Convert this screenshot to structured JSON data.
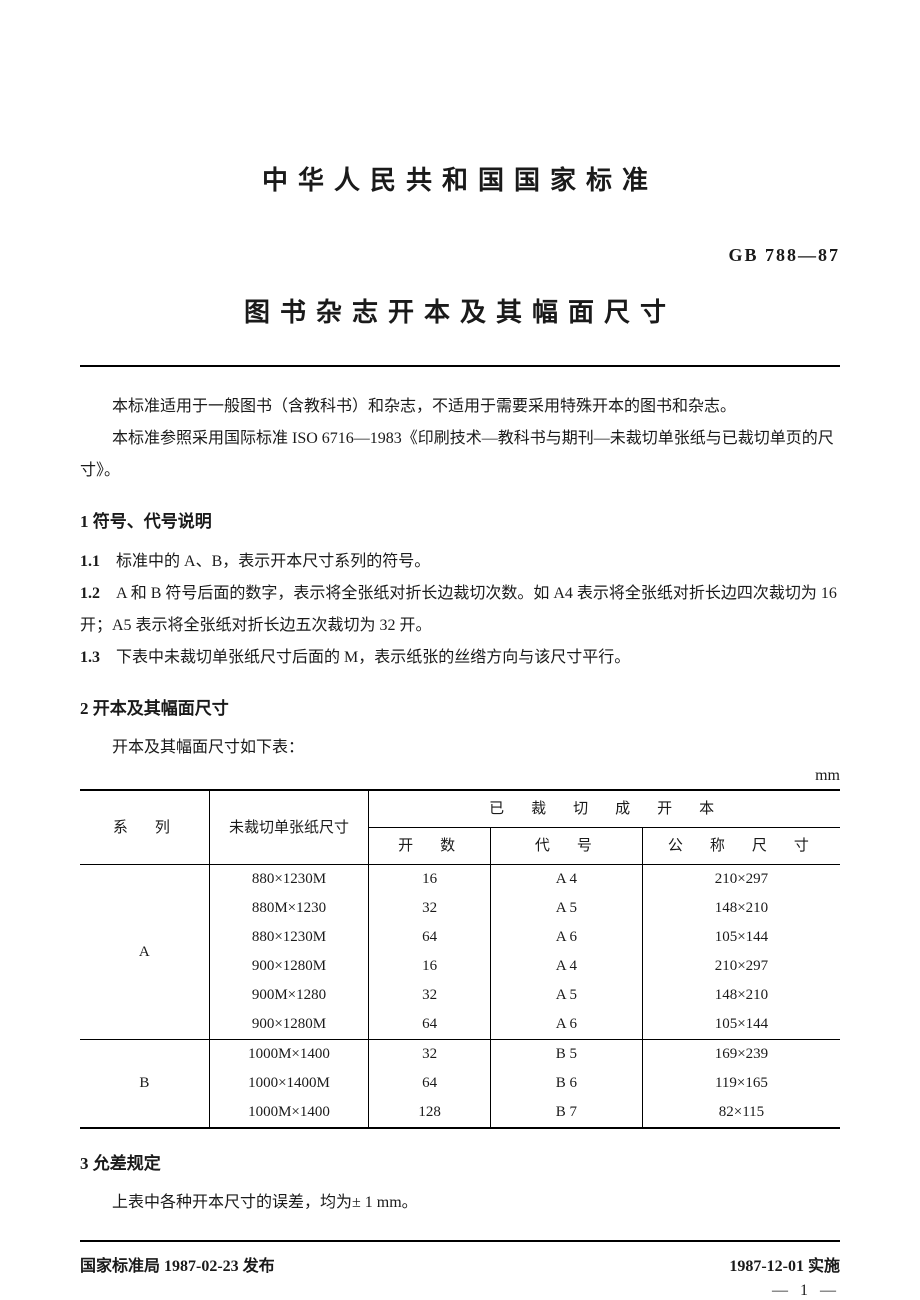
{
  "header": {
    "main_title": "中华人民共和国国家标准",
    "doc_code": "GB  788—87",
    "sub_title": "图书杂志开本及其幅面尺寸"
  },
  "intro": {
    "p1": "本标准适用于一般图书（含教科书）和杂志，不适用于需要采用特殊开本的图书和杂志。",
    "p2": "本标准参照采用国际标准 ISO  6716—1983《印刷技术—教科书与期刊—未裁切单张纸与已裁切单页的尺寸》。"
  },
  "sections": {
    "s1_heading": "1  符号、代号说明",
    "c11_num": "1.1",
    "c11_text": "标准中的 A、B，表示开本尺寸系列的符号。",
    "c12_num": "1.2",
    "c12_text": "A 和 B 符号后面的数字，表示将全张纸对折长边裁切次数。如 A4 表示将全张纸对折长边四次裁切为 16 开；A5 表示将全张纸对折长边五次裁切为 32 开。",
    "c13_num": "1.3",
    "c13_text": "下表中未裁切单张纸尺寸后面的 M，表示纸张的丝绺方向与该尺寸平行。",
    "s2_heading": "2  开本及其幅面尺寸",
    "table_intro": "开本及其幅面尺寸如下表：",
    "unit": "mm",
    "s3_heading": "3  允差规定",
    "s3_text": "上表中各种开本尺寸的误差，均为± 1 mm。"
  },
  "table": {
    "headers": {
      "series": "系　列",
      "uncut": "未裁切单张纸尺寸",
      "group": "已　裁　切　成　开　本",
      "kaishu": "开　数",
      "daihao": "代　号",
      "nominal": "公　称　尺　寸"
    },
    "body": {
      "a_label": "A",
      "b_label": "B",
      "a": [
        {
          "uncut": "880×1230M",
          "kai": "16",
          "code": "A  4",
          "size": "210×297"
        },
        {
          "uncut": "880M×1230",
          "kai": "32",
          "code": "A  5",
          "size": "148×210"
        },
        {
          "uncut": "880×1230M",
          "kai": "64",
          "code": "A  6",
          "size": "105×144"
        },
        {
          "uncut": "900×1280M",
          "kai": "16",
          "code": "A  4",
          "size": "210×297"
        },
        {
          "uncut": "900M×1280",
          "kai": "32",
          "code": "A  5",
          "size": "148×210"
        },
        {
          "uncut": "900×1280M",
          "kai": "64",
          "code": "A  6",
          "size": "105×144"
        }
      ],
      "b": [
        {
          "uncut": "1000M×1400",
          "kai": "32",
          "code": "B  5",
          "size": "169×239"
        },
        {
          "uncut": "1000×1400M",
          "kai": "64",
          "code": "B  6",
          "size": "119×165"
        },
        {
          "uncut": "1000M×1400",
          "kai": "128",
          "code": "B  7",
          "size": "82×115"
        }
      ]
    }
  },
  "footer": {
    "left": "国家标准局 1987-02-23 发布",
    "right": "1987-12-01 实施",
    "page": "— 1 —"
  }
}
